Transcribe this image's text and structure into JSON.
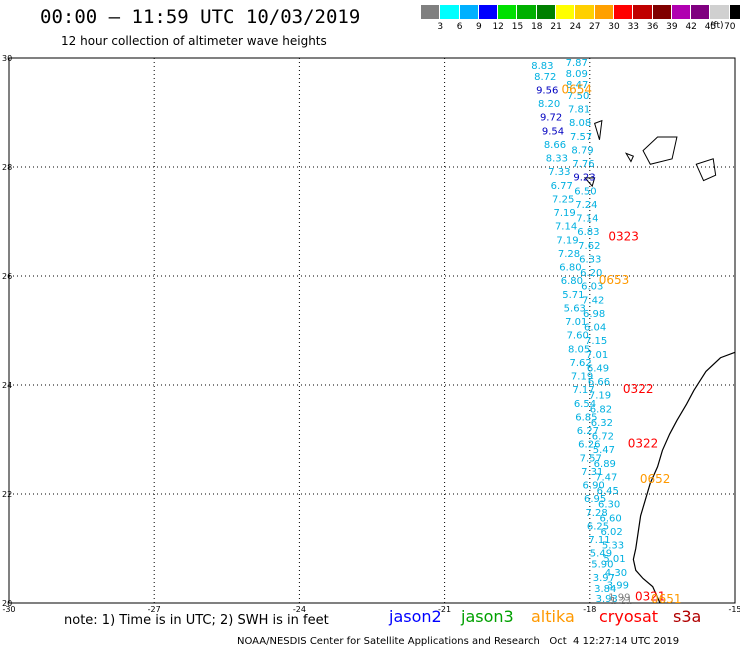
{
  "title": "00:00 – 11:59 UTC 10/03/2019",
  "subtitle": "12 hour collection of altimeter wave heights",
  "scale": {
    "colors": [
      "#808080",
      "#00ffff",
      "#00b0ff",
      "#0000ff",
      "#00e000",
      "#00b000",
      "#008000",
      "#ffff00",
      "#ffd000",
      "#ffa000",
      "#ff0000",
      "#c00000",
      "#800000",
      "#b000b0",
      "#800080",
      "#d0d0d0",
      "#000000"
    ],
    "labels": [
      "3",
      "6",
      "9",
      "12",
      "15",
      "18",
      "21",
      "24",
      "27",
      "30",
      "33",
      "36",
      "39",
      "42",
      "45",
      "70"
    ],
    "unit": "(ft)"
  },
  "note": "note: 1) Time is in UTC; 2) SWH is in feet",
  "legend": [
    {
      "label": "jason2",
      "color": "#0000ff"
    },
    {
      "label": "jason3",
      "color": "#00a000"
    },
    {
      "label": "altika",
      "color": "#ff9900"
    },
    {
      "label": "cryosat",
      "color": "#ff0000"
    },
    {
      "label": "s3a",
      "color": "#b00000"
    }
  ],
  "credit": "NOAA/NESDIS Center for Satellite Applications and Research   Oct  4 12:27:14 UTC 2019",
  "chart_data": {
    "type": "scatter",
    "xlim": [
      -30,
      -15
    ],
    "ylim": [
      20,
      30
    ],
    "xticks": [
      -30,
      -27,
      -24,
      -21,
      -18,
      -15
    ],
    "yticks": [
      20,
      22,
      24,
      26,
      28,
      30
    ],
    "grid": true,
    "track_a": [
      {
        "lon": -18.98,
        "lat": 29.8,
        "v": "8.83"
      },
      {
        "lon": -18.92,
        "lat": 29.6,
        "v": "8.72"
      },
      {
        "lon": -18.88,
        "lat": 29.35,
        "v": "9.56"
      },
      {
        "lon": -18.84,
        "lat": 29.1,
        "v": "8.20"
      },
      {
        "lon": -18.8,
        "lat": 28.85,
        "v": "9.72"
      },
      {
        "lon": -18.76,
        "lat": 28.6,
        "v": "9.54"
      },
      {
        "lon": -18.72,
        "lat": 28.35,
        "v": "8.66"
      },
      {
        "lon": -18.68,
        "lat": 28.1,
        "v": "8.33"
      },
      {
        "lon": -18.63,
        "lat": 27.85,
        "v": "7.33"
      },
      {
        "lon": -18.58,
        "lat": 27.6,
        "v": "6.77"
      },
      {
        "lon": -18.55,
        "lat": 27.35,
        "v": "7.25"
      },
      {
        "lon": -18.52,
        "lat": 27.1,
        "v": "7.19"
      },
      {
        "lon": -18.49,
        "lat": 26.85,
        "v": "7.14"
      },
      {
        "lon": -18.46,
        "lat": 26.6,
        "v": "7.19"
      },
      {
        "lon": -18.43,
        "lat": 26.35,
        "v": "7.28"
      },
      {
        "lon": -18.4,
        "lat": 26.1,
        "v": "6.80"
      },
      {
        "lon": -18.37,
        "lat": 25.85,
        "v": "6.80"
      },
      {
        "lon": -18.34,
        "lat": 25.6,
        "v": "5.71"
      },
      {
        "lon": -18.31,
        "lat": 25.35,
        "v": "5.63"
      },
      {
        "lon": -18.28,
        "lat": 25.1,
        "v": "7.01"
      },
      {
        "lon": -18.25,
        "lat": 24.85,
        "v": "7.60"
      },
      {
        "lon": -18.22,
        "lat": 24.6,
        "v": "8.05"
      },
      {
        "lon": -18.19,
        "lat": 24.35,
        "v": "7.62"
      },
      {
        "lon": -18.16,
        "lat": 24.1,
        "v": "7.19"
      },
      {
        "lon": -18.13,
        "lat": 23.85,
        "v": "7.17"
      },
      {
        "lon": -18.1,
        "lat": 23.6,
        "v": "6.54"
      },
      {
        "lon": -18.07,
        "lat": 23.35,
        "v": "6.85"
      },
      {
        "lon": -18.04,
        "lat": 23.1,
        "v": "6.27"
      },
      {
        "lon": -18.01,
        "lat": 22.85,
        "v": "6.26"
      },
      {
        "lon": -17.98,
        "lat": 22.6,
        "v": "7.57"
      },
      {
        "lon": -17.95,
        "lat": 22.35,
        "v": "7.31"
      },
      {
        "lon": -17.92,
        "lat": 22.1,
        "v": "6.90"
      },
      {
        "lon": -17.89,
        "lat": 21.85,
        "v": "6.95"
      },
      {
        "lon": -17.86,
        "lat": 21.6,
        "v": "7.28"
      },
      {
        "lon": -17.83,
        "lat": 21.35,
        "v": "6.25"
      },
      {
        "lon": -17.8,
        "lat": 21.1,
        "v": "7.11"
      },
      {
        "lon": -17.77,
        "lat": 20.85,
        "v": "5.49"
      },
      {
        "lon": -17.74,
        "lat": 20.65,
        "v": "5.90"
      },
      {
        "lon": -17.71,
        "lat": 20.4,
        "v": "3.97"
      },
      {
        "lon": -17.68,
        "lat": 20.2,
        "v": "3.84"
      },
      {
        "lon": -17.65,
        "lat": 20.02,
        "v": "3.93"
      }
    ],
    "track_b": [
      {
        "lon": -18.27,
        "lat": 29.85,
        "v": "7.87"
      },
      {
        "lon": -18.27,
        "lat": 29.65,
        "v": "8.09"
      },
      {
        "lon": -18.26,
        "lat": 29.45,
        "v": "8.47"
      },
      {
        "lon": -18.24,
        "lat": 29.25,
        "v": "7.50"
      },
      {
        "lon": -18.22,
        "lat": 29.0,
        "v": "7.81"
      },
      {
        "lon": -18.2,
        "lat": 28.75,
        "v": "8.08"
      },
      {
        "lon": -18.18,
        "lat": 28.5,
        "v": "7.57"
      },
      {
        "lon": -18.15,
        "lat": 28.25,
        "v": "8.79"
      },
      {
        "lon": -18.13,
        "lat": 28.0,
        "v": "7.76"
      },
      {
        "lon": -18.11,
        "lat": 27.75,
        "v": "9.23"
      },
      {
        "lon": -18.09,
        "lat": 27.5,
        "v": "6.50"
      },
      {
        "lon": -18.07,
        "lat": 27.25,
        "v": "7.24"
      },
      {
        "lon": -18.05,
        "lat": 27.0,
        "v": "7.14"
      },
      {
        "lon": -18.03,
        "lat": 26.75,
        "v": "6.83"
      },
      {
        "lon": -18.01,
        "lat": 26.5,
        "v": "7.62"
      },
      {
        "lon": -17.99,
        "lat": 26.25,
        "v": "6.33"
      },
      {
        "lon": -17.97,
        "lat": 26.0,
        "v": "6.20"
      },
      {
        "lon": -17.95,
        "lat": 25.75,
        "v": "6.03"
      },
      {
        "lon": -17.93,
        "lat": 25.5,
        "v": "7.42"
      },
      {
        "lon": -17.91,
        "lat": 25.25,
        "v": "6.98"
      },
      {
        "lon": -17.89,
        "lat": 25.0,
        "v": "6.04"
      },
      {
        "lon": -17.87,
        "lat": 24.75,
        "v": "7.15"
      },
      {
        "lon": -17.85,
        "lat": 24.5,
        "v": "7.01"
      },
      {
        "lon": -17.83,
        "lat": 24.25,
        "v": "6.49"
      },
      {
        "lon": -17.81,
        "lat": 24.0,
        "v": "6.66"
      },
      {
        "lon": -17.79,
        "lat": 23.75,
        "v": "7.19"
      },
      {
        "lon": -17.77,
        "lat": 23.5,
        "v": "6.82"
      },
      {
        "lon": -17.75,
        "lat": 23.25,
        "v": "6.32"
      },
      {
        "lon": -17.73,
        "lat": 23.0,
        "v": "6.72"
      },
      {
        "lon": -17.71,
        "lat": 22.75,
        "v": "5.47"
      },
      {
        "lon": -17.69,
        "lat": 22.5,
        "v": "6.89"
      },
      {
        "lon": -17.66,
        "lat": 22.25,
        "v": "7.47"
      },
      {
        "lon": -17.63,
        "lat": 22.0,
        "v": "6.45"
      },
      {
        "lon": -17.6,
        "lat": 21.75,
        "v": "6.30"
      },
      {
        "lon": -17.57,
        "lat": 21.5,
        "v": "6.60"
      },
      {
        "lon": -17.55,
        "lat": 21.25,
        "v": "6.02"
      },
      {
        "lon": -17.52,
        "lat": 21.0,
        "v": "5.33"
      },
      {
        "lon": -17.49,
        "lat": 20.75,
        "v": "5.01"
      },
      {
        "lon": -17.46,
        "lat": 20.5,
        "v": "4.30"
      },
      {
        "lon": -17.42,
        "lat": 20.27,
        "v": "3.99"
      },
      {
        "lon": -17.39,
        "lat": 20.05,
        "v": "1.99"
      },
      {
        "lon": -17.35,
        "lat": 19.98,
        "v": "1.21"
      }
    ],
    "passes": [
      {
        "lon": -18.27,
        "lat": 29.35,
        "v": "0654",
        "color": "#ff9900"
      },
      {
        "lon": -17.3,
        "lat": 26.65,
        "v": "0323",
        "color": "#ff0000"
      },
      {
        "lon": -17.5,
        "lat": 25.85,
        "v": "0653",
        "color": "#ff9900"
      },
      {
        "lon": -17.0,
        "lat": 23.85,
        "v": "0322",
        "color": "#ff0000"
      },
      {
        "lon": -16.9,
        "lat": 22.85,
        "v": "0322",
        "color": "#ff0000"
      },
      {
        "lon": -16.65,
        "lat": 22.2,
        "v": "0652",
        "color": "#ff9900"
      },
      {
        "lon": -16.75,
        "lat": 20.05,
        "v": "0321",
        "color": "#ff0000"
      },
      {
        "lon": -16.42,
        "lat": 20.0,
        "v": "0651",
        "color": "#ff9900"
      }
    ]
  }
}
